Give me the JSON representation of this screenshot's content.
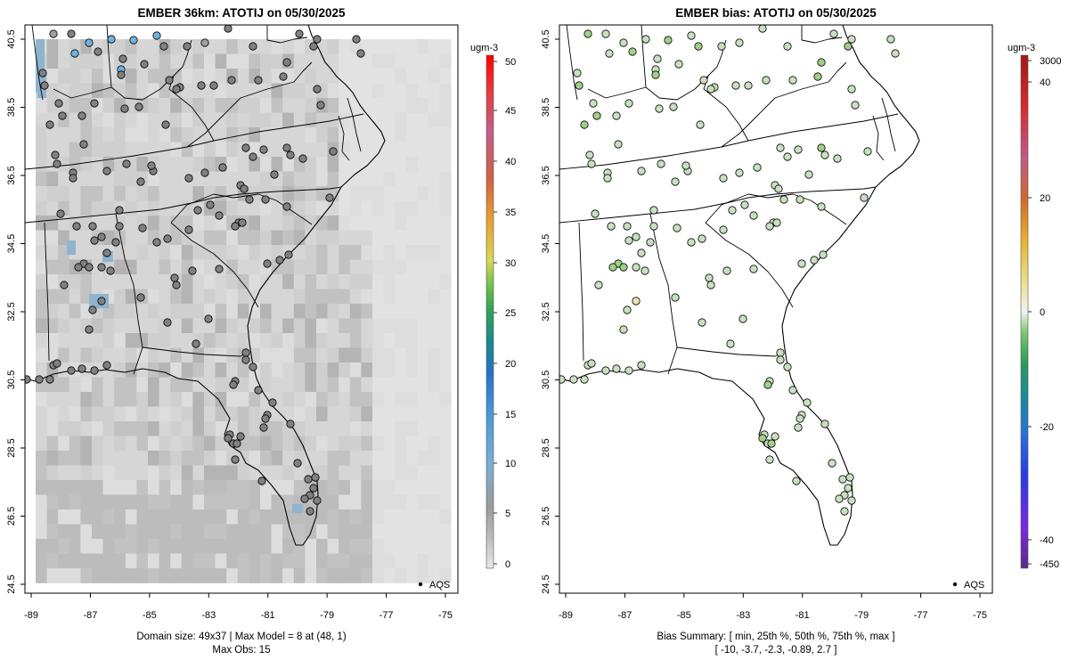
{
  "panels": {
    "left": {
      "title": "EMBER 36km: ATOTIJ on 05/30/2025",
      "colorbar_unit": "ugm-3",
      "colorbar_ticks": [
        "50",
        "45",
        "40",
        "35",
        "30",
        "25",
        "20",
        "15",
        "10",
        "5",
        "0"
      ],
      "legend_label": "AQS",
      "footer_line1": "Domain size: 49x37 | Max Model = 8 at (48, 1)",
      "footer_line2": "Max Obs: 15"
    },
    "right": {
      "title": "EMBER bias: ATOTIJ on 05/30/2025",
      "colorbar_unit": "ugm-3",
      "colorbar_ticks": [
        "3000",
        "40",
        "20",
        "0",
        "-20",
        "-40",
        "-450"
      ],
      "legend_label": "AQS",
      "footer_line1": "Bias Summary: [ min, 25th %, 50th %, 75th %, max ]",
      "footer_line2": "[ -10,   -3.7,   -2.3,   -0.89,   2.7 ]"
    }
  },
  "axes": {
    "x_ticks": [
      "-89",
      "-87",
      "-85",
      "-83",
      "-81",
      "-79",
      "-77",
      "-75"
    ],
    "y_ticks": [
      "24.5",
      "26.5",
      "28.5",
      "30.5",
      "32.5",
      "34.5",
      "36.5",
      "38.5",
      "40.5"
    ],
    "lon_range": [
      -89.2,
      -74.6
    ],
    "lat_range": [
      24.5,
      40.8
    ]
  },
  "colors": {
    "model_scale": [
      "#e8e8e8",
      "#bdbdbd",
      "#9a9a9a",
      "#7ab0d0",
      "#4a9ad8",
      "#2a6fc9",
      "#1a8a8a",
      "#2fa05a",
      "#6fbf50",
      "#d8d850",
      "#e8a030",
      "#d06040",
      "#c0608a",
      "#e83a3a",
      "#ff0000"
    ],
    "bias_scale": [
      "#5a2a8a",
      "#7a2ae0",
      "#2a3ae8",
      "#2a6fd8",
      "#1a8aa0",
      "#2a9a5a",
      "#7fc870",
      "#d0e8d0",
      "#f2f2f2",
      "#e8e08a",
      "#e8b030",
      "#d06a2a",
      "#c05a8a",
      "#d82a2a",
      "#a01a1a"
    ],
    "state_line": "#000000"
  },
  "icons": {
    "legend_marker": "filled-dot-icon"
  }
}
